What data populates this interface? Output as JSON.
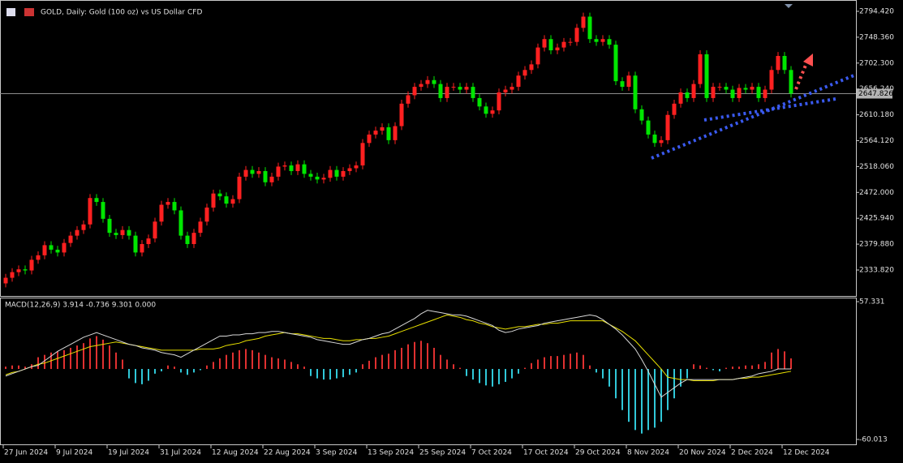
{
  "chart_data": [
    {
      "type": "candlestick",
      "title": "GOLD, Daily:  Gold (100 oz) vs US Dollar CFD",
      "up_color": "#ff2020",
      "down_color": "#00e600",
      "open": [
        2310,
        2320,
        2330,
        2335,
        2333,
        2352,
        2360,
        2378,
        2370,
        2365,
        2382,
        2395,
        2405,
        2415,
        2462,
        2455,
        2425,
        2400,
        2396,
        2405,
        2395,
        2365,
        2380,
        2390,
        2420,
        2450,
        2455,
        2440,
        2395,
        2380,
        2400,
        2420,
        2445,
        2470,
        2465,
        2452,
        2460,
        2500,
        2512,
        2505,
        2510,
        2490,
        2500,
        2518,
        2520,
        2510,
        2522,
        2505,
        2500,
        2495,
        2498,
        2512,
        2500,
        2510,
        2515,
        2520,
        2560,
        2575,
        2582,
        2588,
        2565,
        2590,
        2630,
        2645,
        2660,
        2665,
        2672,
        2665,
        2640,
        2660,
        2660,
        2655,
        2660,
        2640,
        2625,
        2612,
        2618,
        2650,
        2655,
        2660,
        2680,
        2690,
        2700,
        2730,
        2745,
        2725,
        2730,
        2740,
        2740,
        2765,
        2785,
        2745,
        2740,
        2745,
        2735,
        2670,
        2660,
        2680,
        2620,
        2600,
        2575,
        2560,
        2565,
        2610,
        2630,
        2650,
        2640,
        2665,
        2718,
        2640,
        2660,
        2660,
        2655,
        2640,
        2658,
        2655,
        2660,
        2640,
        2655,
        2690,
        2715,
        2690
      ],
      "high": [
        2327,
        2337,
        2342,
        2342,
        2359,
        2367,
        2385,
        2385,
        2377,
        2389,
        2402,
        2412,
        2422,
        2469,
        2469,
        2462,
        2432,
        2407,
        2412,
        2412,
        2402,
        2387,
        2397,
        2427,
        2457,
        2462,
        2462,
        2447,
        2402,
        2407,
        2427,
        2452,
        2477,
        2477,
        2472,
        2467,
        2507,
        2519,
        2519,
        2517,
        2517,
        2507,
        2525,
        2527,
        2527,
        2529,
        2529,
        2512,
        2507,
        2505,
        2519,
        2519,
        2517,
        2522,
        2527,
        2567,
        2582,
        2589,
        2595,
        2595,
        2597,
        2637,
        2652,
        2667,
        2672,
        2679,
        2679,
        2672,
        2667,
        2667,
        2667,
        2667,
        2667,
        2647,
        2632,
        2625,
        2657,
        2662,
        2667,
        2687,
        2697,
        2707,
        2737,
        2752,
        2752,
        2737,
        2747,
        2747,
        2772,
        2792,
        2792,
        2752,
        2752,
        2752,
        2742,
        2677,
        2687,
        2687,
        2627,
        2607,
        2582,
        2572,
        2617,
        2637,
        2657,
        2657,
        2672,
        2725,
        2725,
        2667,
        2667,
        2667,
        2662,
        2665,
        2665,
        2667,
        2667,
        2662,
        2697,
        2722,
        2722,
        2697
      ],
      "low": [
        2303,
        2313,
        2323,
        2326,
        2326,
        2345,
        2353,
        2363,
        2358,
        2358,
        2375,
        2388,
        2398,
        2408,
        2448,
        2418,
        2393,
        2389,
        2389,
        2388,
        2358,
        2358,
        2373,
        2383,
        2413,
        2443,
        2433,
        2388,
        2373,
        2373,
        2393,
        2413,
        2438,
        2458,
        2445,
        2445,
        2453,
        2493,
        2498,
        2498,
        2483,
        2483,
        2493,
        2511,
        2503,
        2503,
        2498,
        2493,
        2488,
        2488,
        2491,
        2493,
        2493,
        2503,
        2508,
        2513,
        2553,
        2568,
        2575,
        2558,
        2558,
        2583,
        2623,
        2638,
        2653,
        2658,
        2658,
        2633,
        2633,
        2653,
        2648,
        2648,
        2633,
        2618,
        2605,
        2605,
        2611,
        2643,
        2648,
        2653,
        2673,
        2683,
        2693,
        2723,
        2718,
        2718,
        2723,
        2733,
        2733,
        2758,
        2738,
        2733,
        2733,
        2728,
        2663,
        2653,
        2653,
        2613,
        2593,
        2568,
        2553,
        2553,
        2558,
        2603,
        2623,
        2633,
        2633,
        2658,
        2633,
        2633,
        2653,
        2648,
        2633,
        2633,
        2648,
        2648,
        2633,
        2633,
        2648,
        2683,
        2683,
        2641
      ],
      "close": [
        2320,
        2330,
        2335,
        2333,
        2352,
        2360,
        2378,
        2370,
        2365,
        2382,
        2395,
        2405,
        2415,
        2462,
        2455,
        2425,
        2400,
        2396,
        2405,
        2395,
        2365,
        2380,
        2390,
        2420,
        2450,
        2455,
        2440,
        2395,
        2380,
        2400,
        2420,
        2445,
        2470,
        2465,
        2452,
        2460,
        2500,
        2512,
        2505,
        2510,
        2490,
        2500,
        2518,
        2520,
        2510,
        2522,
        2505,
        2500,
        2495,
        2498,
        2512,
        2500,
        2510,
        2515,
        2520,
        2560,
        2575,
        2582,
        2588,
        2565,
        2590,
        2630,
        2645,
        2660,
        2665,
        2672,
        2665,
        2640,
        2660,
        2660,
        2655,
        2660,
        2640,
        2625,
        2612,
        2618,
        2650,
        2655,
        2660,
        2680,
        2690,
        2700,
        2730,
        2745,
        2725,
        2730,
        2740,
        2740,
        2765,
        2785,
        2745,
        2740,
        2745,
        2735,
        2670,
        2660,
        2680,
        2620,
        2600,
        2575,
        2560,
        2565,
        2610,
        2630,
        2650,
        2640,
        2665,
        2718,
        2640,
        2660,
        2660,
        2655,
        2640,
        2658,
        2655,
        2660,
        2640,
        2655,
        2690,
        2715,
        2690,
        2648
      ],
      "ylim": [
        2287.6,
        2814.6
      ],
      "yticks": [
        {
          "value": 2794.42,
          "label": "2794.420"
        },
        {
          "value": 2748.36,
          "label": "2748.360"
        },
        {
          "value": 2702.3,
          "label": "2702.300"
        },
        {
          "value": 2656.24,
          "label": "2656.240"
        },
        {
          "value": 2610.18,
          "label": "2610.180"
        },
        {
          "value": 2564.12,
          "label": "2564.120"
        },
        {
          "value": 2518.06,
          "label": "2518.060"
        },
        {
          "value": 2472,
          "label": "2472.000"
        },
        {
          "value": 2425.94,
          "label": "2425.940"
        },
        {
          "value": 2379.88,
          "label": "2379.880"
        },
        {
          "value": 2333.82,
          "label": "2333.820"
        }
      ],
      "current_price": {
        "value": 2647.826,
        "label": "2647.826"
      }
    },
    {
      "type": "macd",
      "title": "MACD(12,26,9) 3.914 -0.736 9.301 0.000",
      "histogram": [
        2,
        3,
        3,
        2,
        4,
        10,
        12,
        14,
        15,
        16,
        18,
        20,
        22,
        26,
        28,
        25,
        20,
        14,
        8,
        -8,
        -12,
        -13,
        -10,
        -4,
        -2,
        3,
        2,
        -3,
        -5,
        -3,
        -1,
        3,
        6,
        9,
        12,
        14,
        16,
        17,
        16,
        14,
        12,
        10,
        9,
        8,
        6,
        4,
        2,
        -6,
        -8,
        -9,
        -9,
        -8,
        -7,
        -5,
        -3,
        4,
        7,
        10,
        12,
        13,
        16,
        18,
        21,
        23,
        24,
        22,
        18,
        12,
        8,
        4,
        1,
        -6,
        -9,
        -12,
        -14,
        -15,
        -13,
        -11,
        -8,
        -4,
        1,
        5,
        8,
        10,
        11,
        11,
        12,
        13,
        14,
        12,
        3,
        -3,
        -8,
        -15,
        -25,
        -35,
        -45,
        -52,
        -55,
        -52,
        -50,
        -45,
        -35,
        -25,
        -15,
        -8,
        4,
        3,
        1,
        -1,
        -2,
        1,
        2,
        2,
        3,
        3,
        4,
        6,
        14,
        17,
        15,
        9
      ],
      "main": [
        -6,
        -4,
        -2,
        0,
        2,
        3,
        7,
        11,
        15,
        18,
        21,
        24,
        27,
        29,
        31,
        29,
        27,
        25,
        23,
        21,
        20,
        18,
        17,
        16,
        14,
        13,
        12,
        10,
        13,
        16,
        19,
        22,
        25,
        28,
        28,
        29,
        29,
        30,
        30,
        31,
        31,
        32,
        32,
        31,
        30,
        29,
        28,
        27,
        25,
        24,
        23,
        22,
        21,
        21,
        23,
        25,
        26,
        28,
        30,
        31,
        34,
        37,
        40,
        43,
        47,
        50,
        49,
        48,
        47,
        46,
        46,
        45,
        43,
        41,
        39,
        37,
        33,
        31,
        32,
        34,
        35,
        36,
        37,
        39,
        40,
        41,
        42,
        43,
        44,
        45,
        46,
        45,
        42,
        38,
        34,
        29,
        23,
        17,
        8,
        -2,
        -13,
        -24,
        -20,
        -16,
        -12,
        -9,
        -9,
        -9,
        -9,
        -9,
        -9,
        -9,
        -9,
        -8,
        -7,
        -6,
        -4,
        -3,
        -2,
        0,
        0,
        0
      ],
      "signal": [
        -5,
        -3,
        -2,
        0,
        2,
        4,
        5,
        7,
        9,
        11,
        13,
        15,
        17,
        19,
        20,
        21,
        22,
        23,
        22,
        21,
        20,
        19,
        18,
        17,
        16,
        16,
        16,
        16,
        16,
        16,
        17,
        17,
        17,
        18,
        20,
        21,
        22,
        24,
        25,
        26,
        28,
        29,
        30,
        31,
        30,
        30,
        29,
        28,
        27,
        26,
        26,
        25,
        24,
        24,
        25,
        25,
        26,
        26,
        27,
        28,
        30,
        32,
        34,
        36,
        38,
        40,
        42,
        44,
        46,
        45,
        44,
        42,
        41,
        39,
        38,
        36,
        35,
        34,
        35,
        36,
        36,
        37,
        38,
        38,
        39,
        39,
        40,
        41,
        41,
        41,
        41,
        41,
        41,
        38,
        35,
        32,
        28,
        24,
        18,
        12,
        6,
        0,
        -7,
        -8,
        -9,
        -9,
        -10,
        -10,
        -10,
        -10,
        -9,
        -9,
        -9,
        -8,
        -8,
        -7,
        -7,
        -6,
        -5,
        -4,
        -3,
        -2
      ],
      "histogram_up_color": "#e03030",
      "histogram_down_color": "#30c8d8",
      "main_color": "#d8d8d8",
      "signal_color": "#e8e000",
      "ylim": [
        -64.2,
        60.8
      ],
      "yticks": [
        57.331,
        -60.013
      ],
      "xticks": [
        {
          "value": 0,
          "label": "27 Jun 2024"
        },
        {
          "value": 8,
          "label": "9 Jul 2024"
        },
        {
          "value": 16,
          "label": "19 Jul 2024"
        },
        {
          "value": 24,
          "label": "31 Jul 2024"
        },
        {
          "value": 32,
          "label": "12 Aug 2024"
        },
        {
          "value": 40,
          "label": "22 Aug 2024"
        },
        {
          "value": 48,
          "label": "3 Sep 2024"
        },
        {
          "value": 56,
          "label": "13 Sep 2024"
        },
        {
          "value": 64,
          "label": "25 Sep 2024"
        },
        {
          "value": 72,
          "label": "7 Oct 2024"
        },
        {
          "value": 80,
          "label": "17 Oct 2024"
        },
        {
          "value": 88,
          "label": "29 Oct 2024"
        },
        {
          "value": 96,
          "label": "8 Nov 2024"
        },
        {
          "value": 104,
          "label": "20 Nov 2024"
        },
        {
          "value": 112,
          "label": "2 Dec 2024"
        },
        {
          "value": 120,
          "label": "12 Dec 2024"
        }
      ]
    }
  ]
}
